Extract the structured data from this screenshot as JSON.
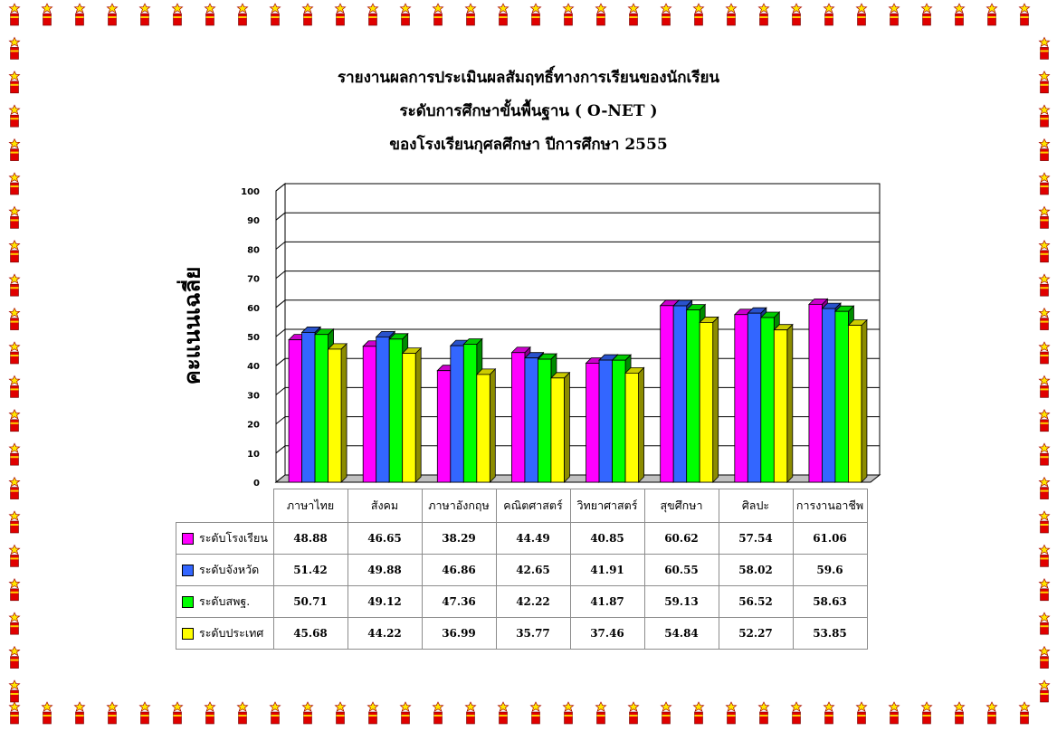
{
  "title_lines": [
    "รายงานผลการประเมินผลสัมฤทธิ์ทางการเรียนของนักเรียน",
    "ระดับการศึกษาขั้นพื้นฐาน  ( O-NET )",
    "ของโรงเรียนกุศลศึกษา ปีการศึกษา 2555"
  ],
  "chart_data": {
    "type": "bar",
    "title": "รายงานผลการประเมินผลสัมฤทธิ์ทางการเรียนของนักเรียน ระดับการศึกษาขั้นพื้นฐาน ( O-NET ) ของโรงเรียนกุศลศึกษา ปีการศึกษา 2555",
    "xlabel": "",
    "ylabel": "คะแนนเฉลี่ย",
    "ylim": [
      0,
      100
    ],
    "yticks": [
      "0",
      "10",
      "20",
      "30",
      "40",
      "50",
      "60",
      "70",
      "80",
      "90",
      "100"
    ],
    "grid": true,
    "categories": [
      "ภาษาไทย",
      "สังคม",
      "ภาษาอังกฤษ",
      "คณิตศาสตร์",
      "วิทยาศาสตร์",
      "สุขศึกษา",
      "ศิลปะ",
      "การงานอาชีพ"
    ],
    "series": [
      {
        "name": "ระดับโรงเรียน",
        "color": "#ff00ff",
        "values": [
          48.88,
          46.65,
          38.29,
          44.49,
          40.85,
          60.62,
          57.54,
          61.06
        ],
        "labels": [
          "48.88",
          "46.65",
          "38.29",
          "44.49",
          "40.85",
          "60.62",
          "57.54",
          "61.06"
        ]
      },
      {
        "name": "ระดับจังหวัด",
        "color": "#3366ff",
        "values": [
          51.42,
          49.88,
          46.86,
          42.65,
          41.91,
          60.55,
          58.02,
          59.6
        ],
        "labels": [
          "51.42",
          "49.88",
          "46.86",
          "42.65",
          "41.91",
          "60.55",
          "58.02",
          "59.6"
        ]
      },
      {
        "name": "ระดับสพฐ.",
        "color": "#00ff00",
        "values": [
          50.71,
          49.12,
          47.36,
          42.22,
          41.87,
          59.13,
          56.52,
          58.63
        ],
        "labels": [
          "50.71",
          "49.12",
          "47.36",
          "42.22",
          "41.87",
          "59.13",
          "56.52",
          "58.63"
        ]
      },
      {
        "name": "ระดับประเทศ",
        "color": "#ffff00",
        "values": [
          45.68,
          44.22,
          36.99,
          35.77,
          37.46,
          54.84,
          52.27,
          53.85
        ],
        "labels": [
          "45.68",
          "44.22",
          "36.99",
          "35.77",
          "37.46",
          "54.84",
          "52.27",
          "53.85"
        ]
      }
    ]
  }
}
